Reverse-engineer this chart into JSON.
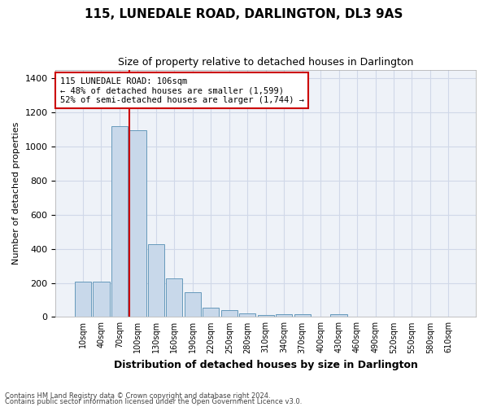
{
  "title": "115, LUNEDALE ROAD, DARLINGTON, DL3 9AS",
  "subtitle": "Size of property relative to detached houses in Darlington",
  "xlabel": "Distribution of detached houses by size in Darlington",
  "ylabel": "Number of detached properties",
  "footnote1": "Contains HM Land Registry data © Crown copyright and database right 2024.",
  "footnote2": "Contains public sector information licensed under the Open Government Licence v3.0.",
  "bar_color": "#c8d8ea",
  "bar_edge_color": "#6699bb",
  "grid_color": "#d0d8e8",
  "background_color": "#eef2f8",
  "categories": [
    "10sqm",
    "40sqm",
    "70sqm",
    "100sqm",
    "130sqm",
    "160sqm",
    "190sqm",
    "220sqm",
    "250sqm",
    "280sqm",
    "310sqm",
    "340sqm",
    "370sqm",
    "400sqm",
    "430sqm",
    "460sqm",
    "490sqm",
    "520sqm",
    "550sqm",
    "580sqm",
    "610sqm"
  ],
  "values": [
    205,
    205,
    1120,
    1095,
    425,
    228,
    145,
    55,
    38,
    22,
    10,
    15,
    15,
    0,
    15,
    0,
    0,
    0,
    0,
    0,
    0
  ],
  "property_bar_index": 3,
  "annotation_text": "115 LUNEDALE ROAD: 106sqm\n← 48% of detached houses are smaller (1,599)\n52% of semi-detached houses are larger (1,744) →",
  "annotation_box_color": "#ffffff",
  "annotation_box_edge": "#cc0000",
  "red_line_color": "#cc0000",
  "ylim": [
    0,
    1450
  ],
  "yticks": [
    0,
    200,
    400,
    600,
    800,
    1000,
    1200,
    1400
  ]
}
